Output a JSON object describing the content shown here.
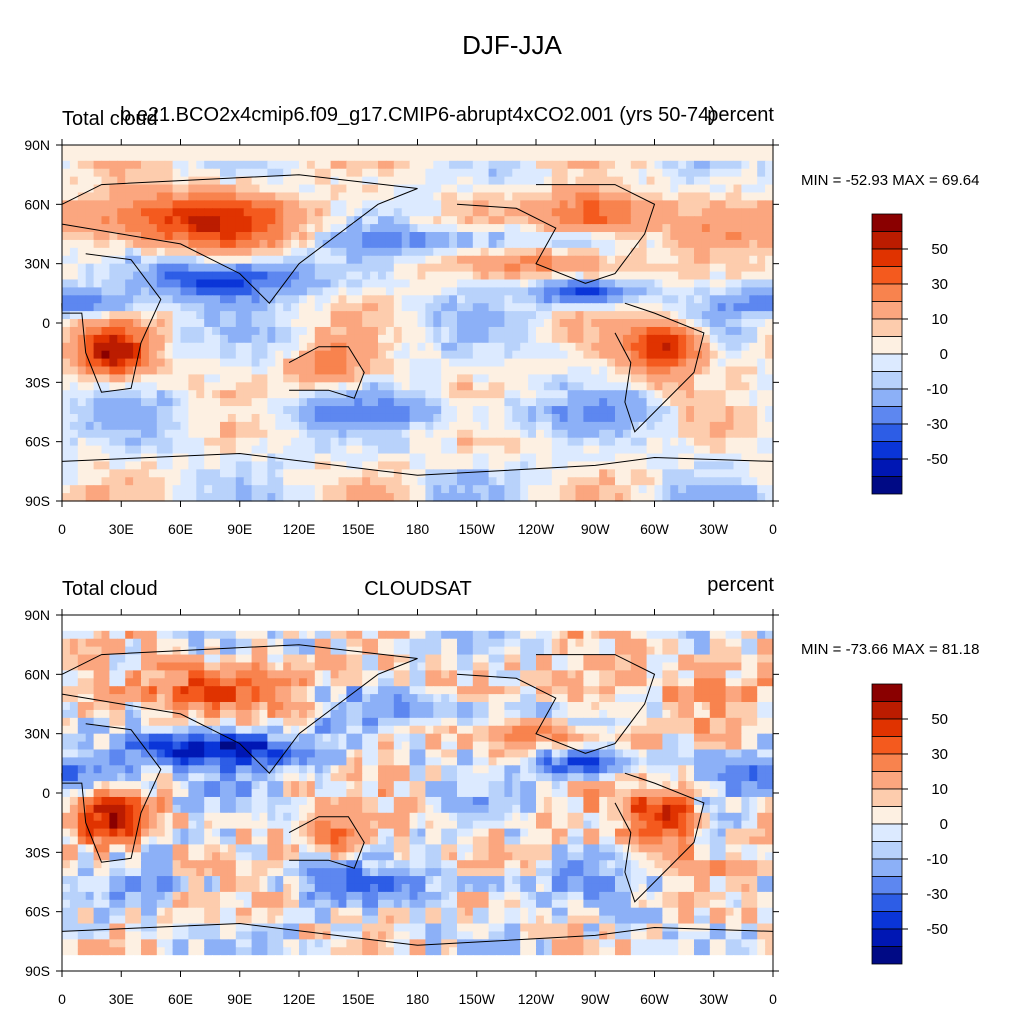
{
  "title": "DJF-JJA",
  "panels": [
    {
      "left_label": "Total cloud",
      "center_label": "b.e21.BCO2x4cmip6.f09_g17.CMIP6-abrupt4xCO2.001 (yrs 50-74)",
      "right_label": "percent",
      "minmax": "MIN = -52.93 MAX =  69.64"
    },
    {
      "left_label": "Total cloud",
      "center_label": "CLOUDSAT",
      "right_label": "percent",
      "minmax": "MIN = -73.66 MAX =  81.18"
    }
  ],
  "axes": {
    "lat_ticks": [
      "90N",
      "60N",
      "30N",
      "0",
      "30S",
      "60S",
      "90S"
    ],
    "lon_ticks": [
      "0",
      "30E",
      "60E",
      "90E",
      "120E",
      "150E",
      "180",
      "150W",
      "120W",
      "90W",
      "60W",
      "30W",
      "0"
    ]
  },
  "colorbar": {
    "colors": [
      "#8a0000",
      "#bb1c00",
      "#e03300",
      "#f45a1e",
      "#f8834e",
      "#fba67f",
      "#fdccad",
      "#fdf0e2",
      "#dceaff",
      "#b8d2fb",
      "#8cb0f7",
      "#5d87f0",
      "#2d5de6",
      "#0a35d8",
      "#0017b4",
      "#000a85"
    ],
    "labels": [
      "50",
      "30",
      "10",
      "0",
      "-10",
      "-30",
      "-50"
    ]
  }
}
